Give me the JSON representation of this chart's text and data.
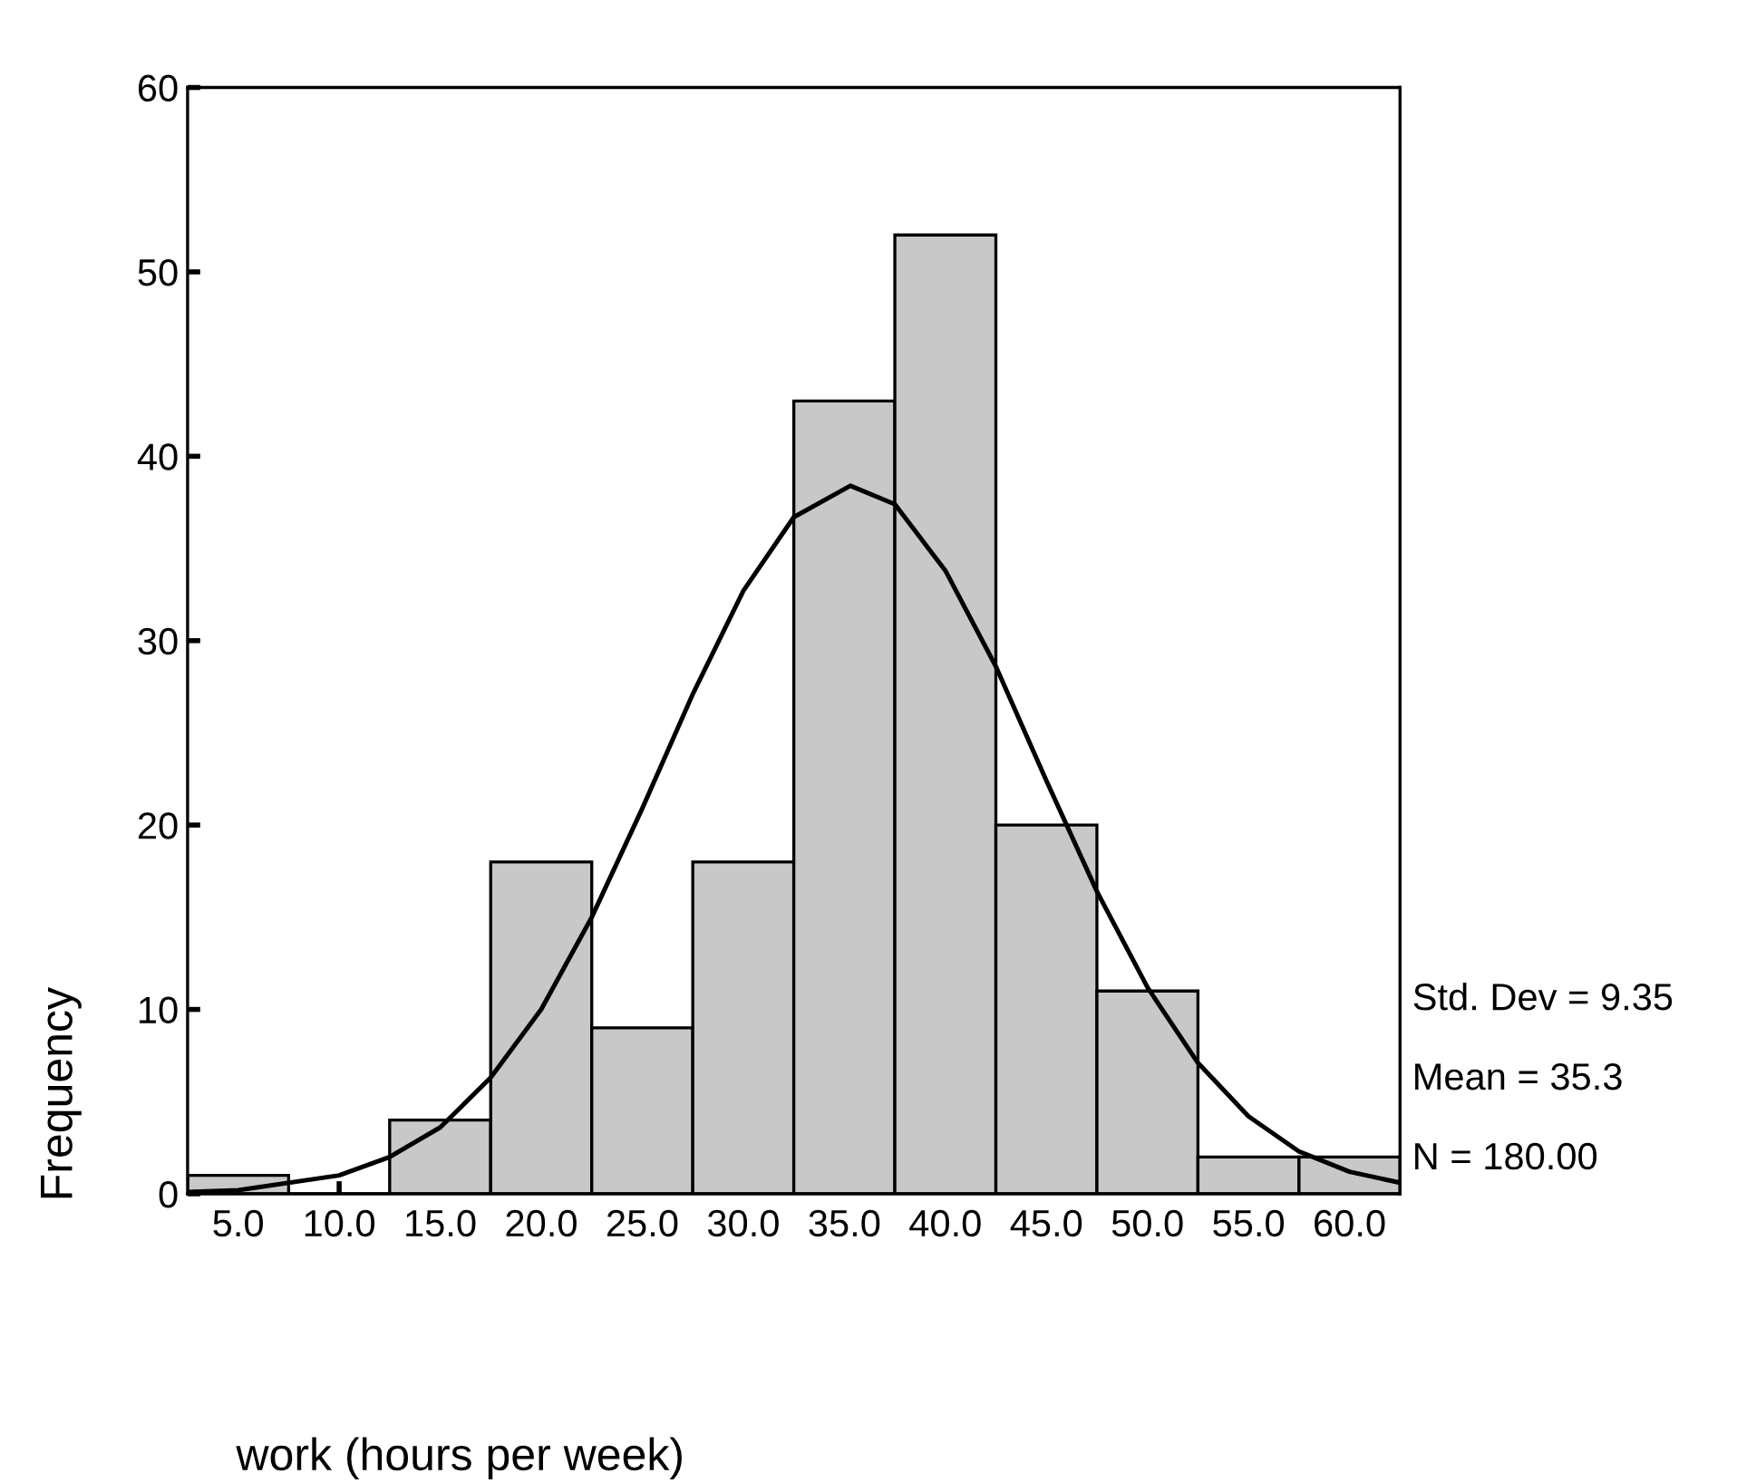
{
  "chart_data": {
    "type": "histogram",
    "xlabel": "work (hours per week)",
    "ylabel": "Frequency",
    "bins": [
      2.5,
      7.5,
      12.5,
      17.5,
      22.5,
      27.5,
      32.5,
      37.5,
      42.5,
      47.5,
      52.5,
      57.5,
      62.5
    ],
    "values": [
      1,
      0,
      4,
      18,
      9,
      18,
      43,
      52,
      20,
      11,
      2,
      2
    ],
    "color": "#c8c8c8",
    "series": [
      {
        "type": "line",
        "color": "#000000",
        "x": [
          2.5,
          5,
          10,
          12.5,
          15,
          17.5,
          20,
          22.5,
          25,
          27.5,
          30,
          32.5,
          35.3,
          37.5,
          40,
          42.5,
          45,
          47.5,
          50,
          52.5,
          55,
          57.5,
          60,
          62.5
        ],
        "values": [
          0.1,
          0.2,
          1.0,
          2.0,
          3.6,
          6.3,
          10.0,
          15.0,
          20.9,
          27.1,
          32.7,
          36.7,
          38.4,
          37.4,
          33.8,
          28.6,
          22.4,
          16.4,
          11.2,
          7.1,
          4.2,
          2.3,
          1.2,
          0.6
        ]
      }
    ],
    "xlim": [
      2.5,
      62.5
    ],
    "xticks": [
      {
        "value": 5,
        "label": "5.0"
      },
      {
        "value": 10,
        "label": "10.0"
      },
      {
        "value": 15,
        "label": "15.0"
      },
      {
        "value": 20,
        "label": "20.0"
      },
      {
        "value": 25,
        "label": "25.0"
      },
      {
        "value": 30,
        "label": "30.0"
      },
      {
        "value": 35,
        "label": "35.0"
      },
      {
        "value": 40,
        "label": "40.0"
      },
      {
        "value": 45,
        "label": "45.0"
      },
      {
        "value": 50,
        "label": "50.0"
      },
      {
        "value": 55,
        "label": "55.0"
      },
      {
        "value": 60,
        "label": "60.0"
      }
    ],
    "ylim": [
      0,
      60
    ],
    "yticks": [
      0,
      10,
      20,
      30,
      40,
      50,
      60
    ],
    "annotations": [
      "Std. Dev = 9.35",
      "Mean = 35.3",
      "N = 180.00"
    ],
    "grid": false,
    "legend": false
  }
}
